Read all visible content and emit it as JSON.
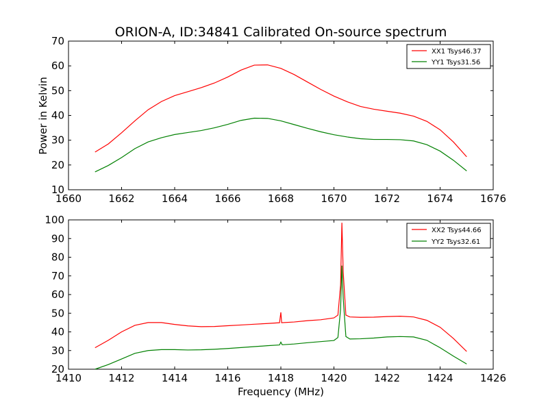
{
  "figure": {
    "title": "ORION-A, ID:34841 Calibrated On-source spectrum",
    "shared_ylabel": "Power in Kelvin",
    "shared_xlabel": "Frequency (MHz)"
  },
  "colors": {
    "red": "#ff0000",
    "green": "#008000",
    "axis": "#000000"
  },
  "chart_data": [
    {
      "type": "line",
      "title": "ORION-A, ID:34841 Calibrated On-source spectrum",
      "xlabel": "",
      "ylabel": "Power in Kelvin",
      "xlim": [
        1660,
        1676
      ],
      "ylim": [
        10,
        70
      ],
      "xticks": [
        1660,
        1662,
        1664,
        1666,
        1668,
        1670,
        1672,
        1674,
        1676
      ],
      "yticks": [
        10,
        20,
        30,
        40,
        50,
        60,
        70
      ],
      "legend_position": "top-right",
      "grid": false,
      "series": [
        {
          "name": "XX1 Tsys46.37",
          "color": "#ff0000",
          "points": [
            [
              1661.0,
              25.2
            ],
            [
              1661.5,
              28.5
            ],
            [
              1662.0,
              33.0
            ],
            [
              1662.5,
              37.8
            ],
            [
              1663.0,
              42.3
            ],
            [
              1663.5,
              45.6
            ],
            [
              1664.0,
              48.0
            ],
            [
              1664.5,
              49.6
            ],
            [
              1665.0,
              51.2
            ],
            [
              1665.5,
              53.1
            ],
            [
              1666.0,
              55.5
            ],
            [
              1666.5,
              58.3
            ],
            [
              1667.0,
              60.3
            ],
            [
              1667.5,
              60.4
            ],
            [
              1668.0,
              59.0
            ],
            [
              1668.5,
              56.5
            ],
            [
              1669.0,
              53.5
            ],
            [
              1669.5,
              50.5
            ],
            [
              1670.0,
              47.8
            ],
            [
              1670.5,
              45.5
            ],
            [
              1671.0,
              43.6
            ],
            [
              1671.5,
              42.5
            ],
            [
              1672.0,
              41.7
            ],
            [
              1672.5,
              40.9
            ],
            [
              1673.0,
              39.7
            ],
            [
              1673.5,
              37.6
            ],
            [
              1674.0,
              34.2
            ],
            [
              1674.5,
              29.3
            ],
            [
              1675.0,
              23.3
            ]
          ]
        },
        {
          "name": "YY1 Tsys31.56",
          "color": "#008000",
          "points": [
            [
              1661.0,
              17.2
            ],
            [
              1661.5,
              19.8
            ],
            [
              1662.0,
              23.0
            ],
            [
              1662.5,
              26.6
            ],
            [
              1663.0,
              29.3
            ],
            [
              1663.5,
              31.0
            ],
            [
              1664.0,
              32.3
            ],
            [
              1664.5,
              33.1
            ],
            [
              1665.0,
              33.9
            ],
            [
              1665.5,
              35.0
            ],
            [
              1666.0,
              36.4
            ],
            [
              1666.5,
              38.0
            ],
            [
              1667.0,
              38.9
            ],
            [
              1667.5,
              38.8
            ],
            [
              1668.0,
              37.8
            ],
            [
              1668.5,
              36.3
            ],
            [
              1669.0,
              34.8
            ],
            [
              1669.5,
              33.4
            ],
            [
              1670.0,
              32.2
            ],
            [
              1670.5,
              31.3
            ],
            [
              1671.0,
              30.6
            ],
            [
              1671.5,
              30.3
            ],
            [
              1672.0,
              30.3
            ],
            [
              1672.5,
              30.2
            ],
            [
              1673.0,
              29.7
            ],
            [
              1673.5,
              28.2
            ],
            [
              1674.0,
              25.6
            ],
            [
              1674.5,
              21.9
            ],
            [
              1675.0,
              17.6
            ]
          ]
        }
      ]
    },
    {
      "type": "line",
      "title": "",
      "xlabel": "Frequency (MHz)",
      "ylabel": "",
      "xlim": [
        1410,
        1426
      ],
      "ylim": [
        20,
        100
      ],
      "xticks": [
        1410,
        1412,
        1414,
        1416,
        1418,
        1420,
        1422,
        1424,
        1426
      ],
      "yticks": [
        20,
        30,
        40,
        50,
        60,
        70,
        80,
        90,
        100
      ],
      "legend_position": "top-right",
      "grid": false,
      "series": [
        {
          "name": "XX2 Tsys44.66",
          "color": "#ff0000",
          "points": [
            [
              1411.0,
              31.5
            ],
            [
              1411.5,
              35.5
            ],
            [
              1412.0,
              40.0
            ],
            [
              1412.5,
              43.5
            ],
            [
              1413.0,
              45.0
            ],
            [
              1413.5,
              45.0
            ],
            [
              1414.0,
              44.0
            ],
            [
              1414.5,
              43.2
            ],
            [
              1415.0,
              42.8
            ],
            [
              1415.5,
              42.9
            ],
            [
              1416.0,
              43.3
            ],
            [
              1416.5,
              43.7
            ],
            [
              1417.0,
              44.1
            ],
            [
              1417.5,
              44.5
            ],
            [
              1417.95,
              44.9
            ],
            [
              1418.0,
              50.5
            ],
            [
              1418.03,
              44.9
            ],
            [
              1418.5,
              45.3
            ],
            [
              1419.0,
              46.0
            ],
            [
              1419.5,
              46.5
            ],
            [
              1420.0,
              47.5
            ],
            [
              1420.15,
              49.0
            ],
            [
              1420.25,
              65.0
            ],
            [
              1420.3,
              98.5
            ],
            [
              1420.35,
              72.0
            ],
            [
              1420.45,
              49.0
            ],
            [
              1420.6,
              48.0
            ],
            [
              1421.0,
              47.8
            ],
            [
              1421.5,
              47.9
            ],
            [
              1422.0,
              48.2
            ],
            [
              1422.5,
              48.4
            ],
            [
              1423.0,
              48.0
            ],
            [
              1423.5,
              46.2
            ],
            [
              1424.0,
              42.5
            ],
            [
              1424.5,
              36.5
            ],
            [
              1425.0,
              29.5
            ]
          ]
        },
        {
          "name": "YY2 Tsys32.61",
          "color": "#008000",
          "points": [
            [
              1411.0,
              20.0
            ],
            [
              1411.5,
              22.5
            ],
            [
              1412.0,
              25.5
            ],
            [
              1412.5,
              28.5
            ],
            [
              1413.0,
              30.0
            ],
            [
              1413.5,
              30.5
            ],
            [
              1414.0,
              30.5
            ],
            [
              1414.5,
              30.3
            ],
            [
              1415.0,
              30.4
            ],
            [
              1415.5,
              30.7
            ],
            [
              1416.0,
              31.1
            ],
            [
              1416.5,
              31.6
            ],
            [
              1417.0,
              32.1
            ],
            [
              1417.5,
              32.6
            ],
            [
              1417.95,
              33.0
            ],
            [
              1418.0,
              34.5
            ],
            [
              1418.05,
              33.1
            ],
            [
              1418.5,
              33.5
            ],
            [
              1419.0,
              34.2
            ],
            [
              1419.5,
              34.8
            ],
            [
              1420.0,
              35.4
            ],
            [
              1420.15,
              37.0
            ],
            [
              1420.25,
              52.0
            ],
            [
              1420.3,
              75.5
            ],
            [
              1420.35,
              58.0
            ],
            [
              1420.45,
              37.5
            ],
            [
              1420.6,
              36.2
            ],
            [
              1421.0,
              36.3
            ],
            [
              1421.5,
              36.7
            ],
            [
              1422.0,
              37.3
            ],
            [
              1422.5,
              37.5
            ],
            [
              1423.0,
              37.3
            ],
            [
              1423.5,
              35.5
            ],
            [
              1424.0,
              31.5
            ],
            [
              1424.5,
              27.0
            ],
            [
              1425.0,
              22.8
            ]
          ]
        }
      ]
    }
  ]
}
